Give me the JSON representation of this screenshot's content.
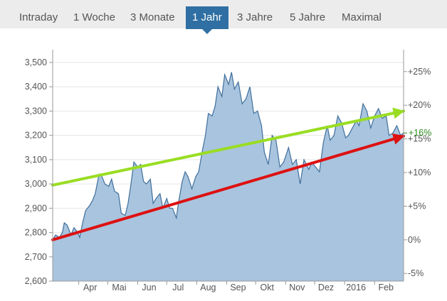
{
  "tabs": [
    {
      "label": "Intraday",
      "active": false
    },
    {
      "label": "1 Woche",
      "active": false
    },
    {
      "label": "3 Monate",
      "active": false
    },
    {
      "label": "1 Jahr",
      "active": true
    },
    {
      "label": "3 Jahre",
      "active": false
    },
    {
      "label": "5 Jahre",
      "active": false
    },
    {
      "label": "Maximal",
      "active": false
    }
  ],
  "colors": {
    "tab_active": "#2f6fa3",
    "area_fill": "#a9c4de",
    "area_line": "#3f6f9c",
    "trend_upper": "#99dd22",
    "trend_lower": "#dd1111",
    "current_pct": "#2e8b1e"
  },
  "chart_data": {
    "type": "area",
    "title": "",
    "xlabel": "",
    "ylabel": "",
    "ylim": [
      2600,
      3500
    ],
    "y_ticks": [
      "3,500",
      "3,400",
      "3,300",
      "3,200",
      "3,100",
      "3,000",
      "2,900",
      "2,800",
      "2,700",
      "2,600"
    ],
    "y2_ticks": [
      "+25%",
      "+20%",
      "+15%",
      "+10%",
      "+5%",
      "0%",
      "-5%"
    ],
    "current_pct_label": "+16%",
    "x_range": [
      "2015-03-05",
      "2016-03-02"
    ],
    "x_tick_labels": [
      {
        "label": "Apr",
        "date": "2015-04-01"
      },
      {
        "label": "Mai",
        "date": "2015-05-01"
      },
      {
        "label": "Jun",
        "date": "2015-06-01"
      },
      {
        "label": "Jul",
        "date": "2015-07-01"
      },
      {
        "label": "Aug",
        "date": "2015-08-01"
      },
      {
        "label": "Sep",
        "date": "2015-09-01"
      },
      {
        "label": "Okt",
        "date": "2015-10-01"
      },
      {
        "label": "Nov",
        "date": "2015-11-01"
      },
      {
        "label": "Dez",
        "date": "2015-12-01"
      },
      {
        "label": "2016",
        "date": "2016-01-01"
      },
      {
        "label": "Feb",
        "date": "2016-02-01"
      }
    ],
    "series": [
      {
        "x": [
          "2015-03-05",
          "2015-03-08",
          "2015-03-12",
          "2015-03-15",
          "2015-03-17",
          "2015-03-20",
          "2015-03-24",
          "2015-03-27",
          "2015-03-31",
          "2015-04-02",
          "2015-04-05",
          "2015-04-08",
          "2015-04-12",
          "2015-04-15",
          "2015-04-18",
          "2015-04-22",
          "2015-04-25",
          "2015-04-28",
          "2015-05-02",
          "2015-05-05",
          "2015-05-08",
          "2015-05-12",
          "2015-05-15",
          "2015-05-19",
          "2015-05-22",
          "2015-05-25",
          "2015-05-28",
          "2015-06-01",
          "2015-06-04",
          "2015-06-07",
          "2015-06-10",
          "2015-06-14",
          "2015-06-17",
          "2015-06-20",
          "2015-06-24",
          "2015-06-27",
          "2015-07-01",
          "2015-07-04",
          "2015-07-07",
          "2015-07-11",
          "2015-07-13",
          "2015-07-17",
          "2015-07-20",
          "2015-07-23",
          "2015-07-27",
          "2015-07-31",
          "2015-08-03",
          "2015-08-07",
          "2015-08-10",
          "2015-08-13",
          "2015-08-17",
          "2015-08-20",
          "2015-08-23",
          "2015-08-27",
          "2015-08-30",
          "2015-09-03",
          "2015-09-06",
          "2015-09-09",
          "2015-09-13",
          "2015-09-17",
          "2015-09-21",
          "2015-09-25",
          "2015-09-29",
          "2015-10-03",
          "2015-10-07",
          "2015-10-10",
          "2015-10-14",
          "2015-10-18",
          "2015-10-22",
          "2015-10-26",
          "2015-10-30",
          "2015-11-04",
          "2015-11-08",
          "2015-11-12",
          "2015-11-16",
          "2015-11-20",
          "2015-11-25",
          "2015-11-28",
          "2015-12-02",
          "2015-12-06",
          "2015-12-10",
          "2015-12-14",
          "2015-12-17",
          "2015-12-21",
          "2015-12-25",
          "2015-12-29",
          "2016-01-02",
          "2016-01-05",
          "2016-01-09",
          "2016-01-13",
          "2016-01-16",
          "2016-01-20",
          "2016-01-24",
          "2016-01-28",
          "2016-02-01",
          "2016-02-05",
          "2016-02-09",
          "2016-02-13",
          "2016-02-16",
          "2016-02-20",
          "2016-02-24",
          "2016-02-28",
          "2016-03-02"
        ],
        "y": [
          2770,
          2790,
          2780,
          2800,
          2840,
          2830,
          2790,
          2820,
          2800,
          2780,
          2840,
          2890,
          2910,
          2930,
          2960,
          3040,
          3030,
          3000,
          2990,
          3020,
          2970,
          2960,
          2880,
          2870,
          2920,
          3000,
          3090,
          3070,
          3080,
          3010,
          3000,
          3020,
          2920,
          2940,
          2960,
          2900,
          2940,
          2900,
          2900,
          2860,
          2920,
          3010,
          3050,
          3030,
          2980,
          3030,
          3050,
          3140,
          3200,
          3290,
          3280,
          3320,
          3400,
          3360,
          3450,
          3410,
          3460,
          3390,
          3420,
          3330,
          3350,
          3400,
          3290,
          3300,
          3240,
          3130,
          3080,
          3200,
          3180,
          3070,
          3090,
          3150,
          3080,
          3100,
          3000,
          3100,
          3060,
          3090,
          3070,
          3050,
          3170,
          3240,
          3180,
          3200,
          3280,
          3250,
          3190,
          3200,
          3230,
          3260,
          3240,
          3330,
          3300,
          3230,
          3280,
          3310,
          3270,
          3280,
          3200,
          3210,
          3240,
          3200,
          3210
        ]
      }
    ],
    "trend_lines": [
      {
        "name": "upper",
        "start": [
          "2015-03-05",
          2995
        ],
        "end": [
          "2016-03-02",
          3300
        ]
      },
      {
        "name": "lower",
        "start": [
          "2015-03-05",
          2770
        ],
        "end": [
          "2016-03-02",
          3197
        ]
      }
    ]
  }
}
